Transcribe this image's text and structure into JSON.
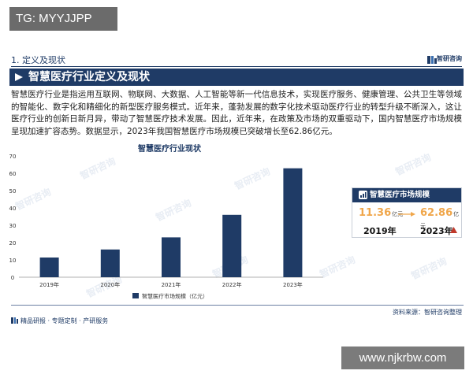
{
  "tag": "TG: MYYJJPP",
  "section": {
    "number": "1. 定义及现状",
    "brand": "智研咨询"
  },
  "title": "智慧医疗行业定义及现状",
  "body_text": "智慧医疗行业是指运用互联网、物联网、大数据、人工智能等新一代信息技术，实现医疗服务、健康管理、公共卫生等领域的智能化、数字化和精细化的新型医疗服务模式。近年来，蓬勃发展的数字化技术驱动医疗行业的转型升级不断深入，这让医疗行业的创新日新月异，带动了智慧医疗技术发展。因此，近年来，在政策及市场的双重驱动下，国内智慧医疗市场规模呈现加速扩容态势。数据显示，2023年我国智慧医疗市场规模已突破增长至62.86亿元。",
  "chart_data": {
    "type": "bar",
    "title": "智慧医疗行业现状",
    "categories": [
      "2019年",
      "2020年",
      "2021年",
      "2022年",
      "2023年"
    ],
    "values": [
      11.36,
      16.0,
      23.0,
      36.0,
      62.86
    ],
    "series_name": "智慧医疗市场规模（亿元）",
    "ylim": [
      0,
      70
    ],
    "yticks": [
      "0",
      "10",
      "20",
      "30",
      "40",
      "50",
      "60",
      "70"
    ],
    "grid": false,
    "bar_color": "#1f3b66",
    "legend": "bottom"
  },
  "stat_card": {
    "title": "智慧医疗市场规模",
    "value_start": "11.36",
    "value_end": "62.86",
    "unit": "亿元",
    "year_start": "2019年",
    "year_end": "2023年",
    "up_color": "#c0392b",
    "value_color": "#f0a64a"
  },
  "source": "资料来源：智研咨询整理",
  "footer": "精品研报 · 专题定制 · 产研服务",
  "watermark": "智研咨询",
  "url": "www.njkrbw.com",
  "colors": {
    "primary": "#1f3b66",
    "accent": "#f0a64a"
  }
}
